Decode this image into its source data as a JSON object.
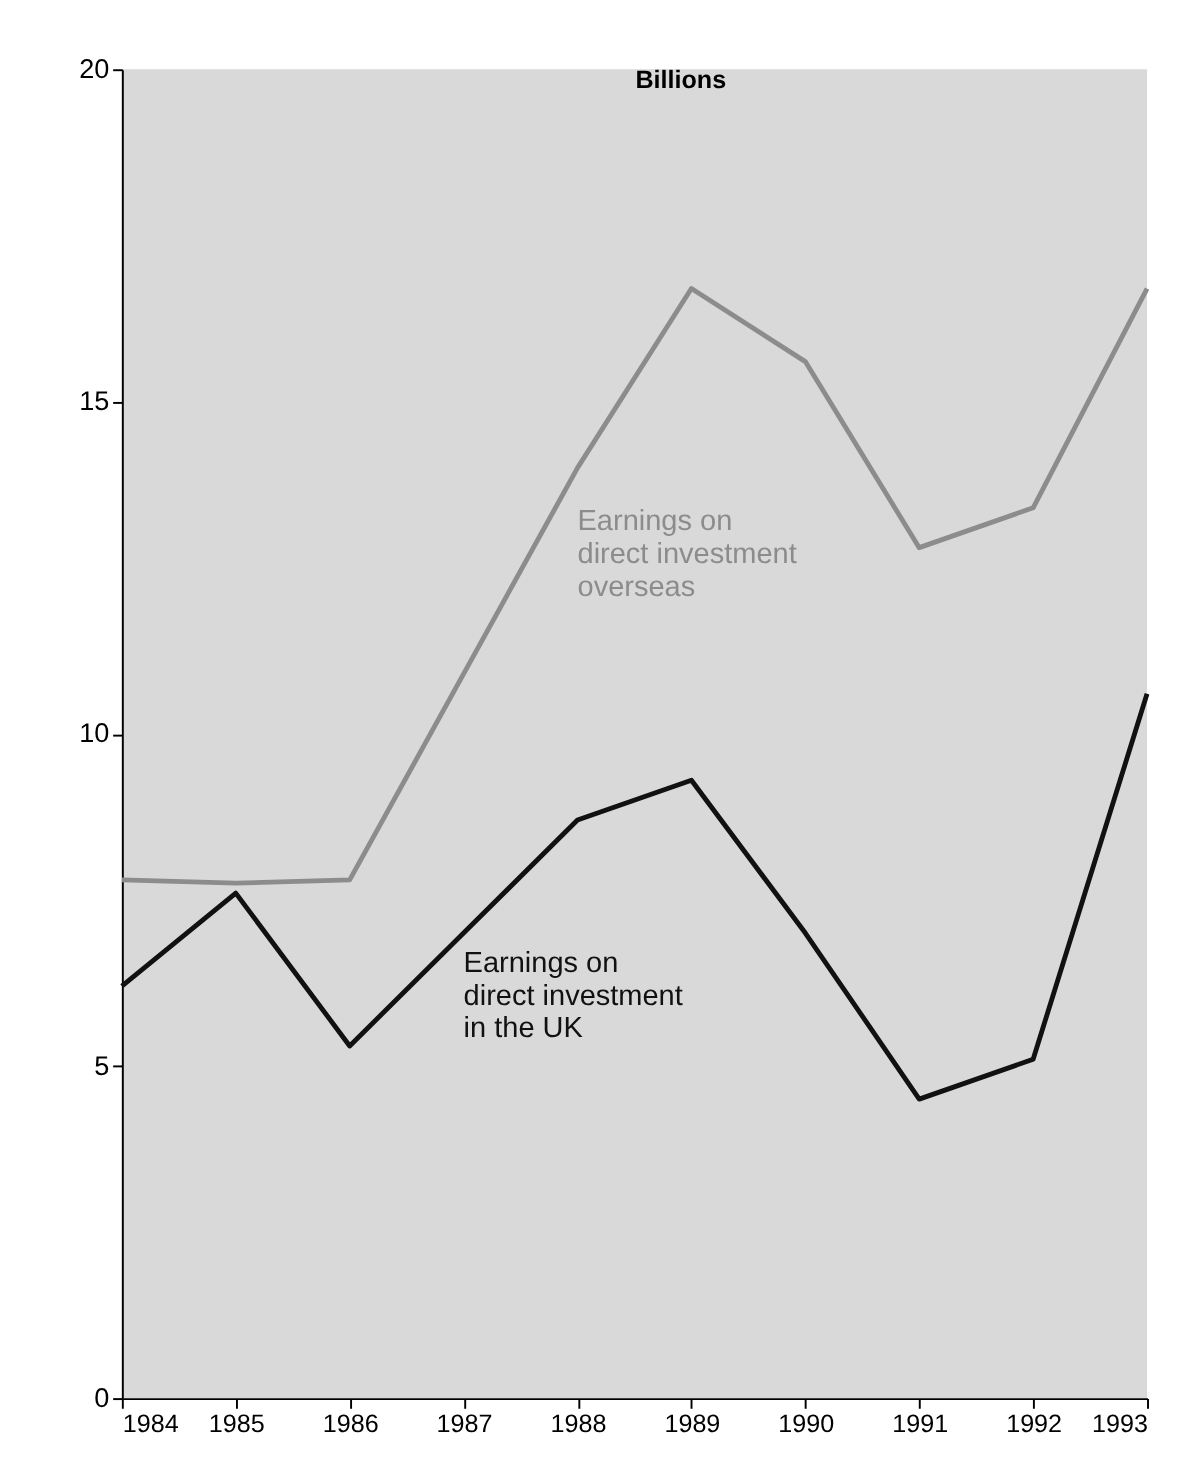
{
  "chart_data": {
    "type": "line",
    "ylabel": "Billions",
    "x": [
      1984,
      1985,
      1986,
      1987,
      1988,
      1989,
      1990,
      1991,
      1992,
      1993
    ],
    "xlim": [
      1984,
      1993
    ],
    "xticks": [
      1984,
      1985,
      1986,
      1987,
      1988,
      1989,
      1990,
      1991,
      1992,
      1993
    ],
    "ylim": [
      0,
      20
    ],
    "yticks": [
      0,
      5,
      10,
      15,
      20
    ],
    "grid": false,
    "legend": false,
    "marker": "none",
    "line_style": "solid",
    "series": [
      {
        "name": "Earnings on direct investment overseas",
        "color": "#8c8c8c",
        "values": [
          7.8,
          7.75,
          7.8,
          10.9,
          14.0,
          16.7,
          15.6,
          12.8,
          13.4,
          16.7
        ]
      },
      {
        "name": "Earnings on direct investment in the UK",
        "color": "#111111",
        "values": [
          6.2,
          7.6,
          5.3,
          7.0,
          8.7,
          9.3,
          7.0,
          4.5,
          5.1,
          10.6
        ]
      }
    ]
  }
}
